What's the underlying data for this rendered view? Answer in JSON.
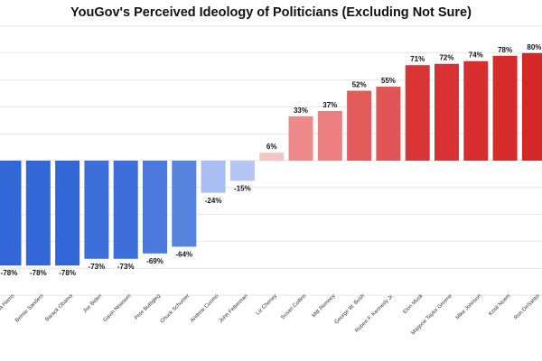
{
  "chart_data": {
    "type": "bar",
    "title": "YouGov's Perceived Ideology of Politicians (Excluding Not Sure)",
    "xlabel": "",
    "ylabel": "",
    "ylim": [
      -100,
      100
    ],
    "grid": true,
    "categories": [
      "Kamala Harris",
      "Bernie Sanders",
      "Barack Obama",
      "Joe Biden",
      "Gavin Newsom",
      "Pete Buttigieg",
      "Chuck Schumer",
      "Andrew Cuomo",
      "John Fetterman",
      "Liz Cheney",
      "Susan Collins",
      "Mitt Romney",
      "George W. Bush",
      "Robert F. Kennedy Jr.",
      "Elon Musk",
      "Marjorie Taylor Greene",
      "Mike Johnson",
      "Kristi Noem",
      "Ron DeSantis"
    ],
    "values": [
      -78,
      -78,
      -78,
      -73,
      -73,
      -69,
      -64,
      -24,
      -15,
      6,
      33,
      37,
      52,
      55,
      71,
      72,
      74,
      78,
      80
    ],
    "value_labels": [
      "-78%",
      "-78%",
      "-78%",
      "-73%",
      "-73%",
      "-69%",
      "-64%",
      "-24%",
      "-15%",
      "6%",
      "33%",
      "37%",
      "52%",
      "55%",
      "71%",
      "72%",
      "74%",
      "78%",
      "80%"
    ],
    "colors": [
      "#3366d6",
      "#3366d6",
      "#3366d6",
      "#3d6ed9",
      "#3d6ed9",
      "#4a78dc",
      "#5583de",
      "#a9bff3",
      "#b4c7f3",
      "#f7c4c4",
      "#ef8a8a",
      "#ec8080",
      "#e25c5c",
      "#e05555",
      "#d93535",
      "#d83232",
      "#d72f2f",
      "#d52b2b",
      "#d42828"
    ]
  }
}
